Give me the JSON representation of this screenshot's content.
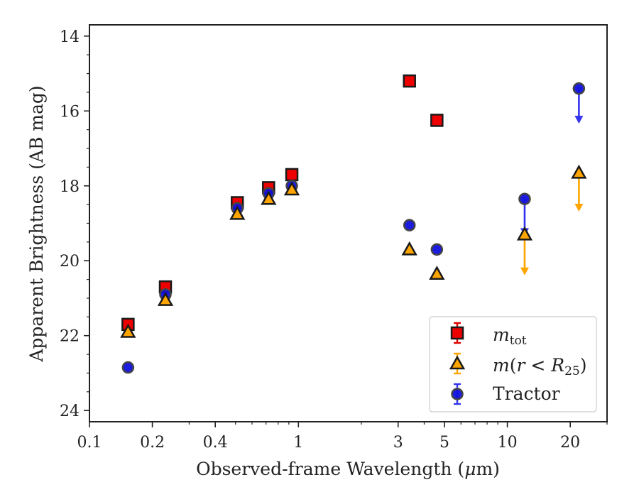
{
  "chart_data": {
    "type": "scatter",
    "title": "",
    "xlabel_parts": [
      "Observed-frame Wavelength (",
      "μ",
      "m)"
    ],
    "ylabel": "Apparent Brightness (AB mag)",
    "x_scale": "log",
    "xlim": [
      0.1,
      30
    ],
    "ylim": [
      24.3,
      13.7
    ],
    "y_inverted": true,
    "grid": false,
    "legend_position": "lower-right",
    "x_ticks": [
      0.1,
      0.2,
      0.4,
      1,
      3,
      5,
      10,
      20
    ],
    "x_tick_labels": [
      "0.1",
      "0.2",
      "0.4",
      "1",
      "3",
      "5",
      "10",
      "20"
    ],
    "y_ticks": [
      14,
      16,
      18,
      20,
      22,
      24
    ],
    "y_tick_labels": [
      "14",
      "16",
      "18",
      "20",
      "22",
      "24"
    ],
    "series": [
      {
        "key": "mtot",
        "legend_main": "m",
        "legend_sub": "tot",
        "marker": "square",
        "fill": "#ee0000",
        "edge": "#1a1a1a",
        "points": [
          {
            "x": 0.153,
            "y": 21.7
          },
          {
            "x": 0.231,
            "y": 20.7
          },
          {
            "x": 0.51,
            "y": 18.45
          },
          {
            "x": 0.72,
            "y": 18.05
          },
          {
            "x": 0.93,
            "y": 17.7
          },
          {
            "x": 3.4,
            "y": 15.2
          },
          {
            "x": 4.6,
            "y": 16.25
          }
        ]
      },
      {
        "key": "mr25",
        "legend_main": "m",
        "legend_paren_open": "(",
        "legend_r": "r",
        "legend_lt": " < ",
        "legend_R": "R",
        "legend_sub": "25",
        "legend_paren_close": ")",
        "marker": "triangle",
        "fill": "#ffa500",
        "edge": "#1a1a1a",
        "upper_limit_color": "#ffa500",
        "points": [
          {
            "x": 0.153,
            "y": 21.9
          },
          {
            "x": 0.231,
            "y": 21.05
          },
          {
            "x": 0.51,
            "y": 18.75
          },
          {
            "x": 0.72,
            "y": 18.35
          },
          {
            "x": 0.93,
            "y": 18.1
          },
          {
            "x": 3.4,
            "y": 19.7
          },
          {
            "x": 4.6,
            "y": 20.35
          },
          {
            "x": 12.1,
            "y": 19.3,
            "upper_limit": true,
            "arrow_to": 20.35
          },
          {
            "x": 22.0,
            "y": 17.65,
            "upper_limit": true,
            "arrow_to": 18.65
          }
        ]
      },
      {
        "key": "tractor",
        "legend_main": "Tractor",
        "marker": "circle",
        "fill": "#1010dd",
        "edge": "#444444",
        "upper_limit_color": "#3333ee",
        "points": [
          {
            "x": 0.153,
            "y": 22.85
          },
          {
            "x": 0.231,
            "y": 20.9
          },
          {
            "x": 0.51,
            "y": 18.6
          },
          {
            "x": 0.72,
            "y": 18.2
          },
          {
            "x": 0.93,
            "y": 18.0
          },
          {
            "x": 3.4,
            "y": 19.05
          },
          {
            "x": 4.6,
            "y": 19.7
          },
          {
            "x": 12.1,
            "y": 18.35,
            "upper_limit": true,
            "arrow_to": 19.3
          },
          {
            "x": 22.0,
            "y": 15.4,
            "upper_limit": true,
            "arrow_to": 16.3
          }
        ]
      }
    ]
  }
}
